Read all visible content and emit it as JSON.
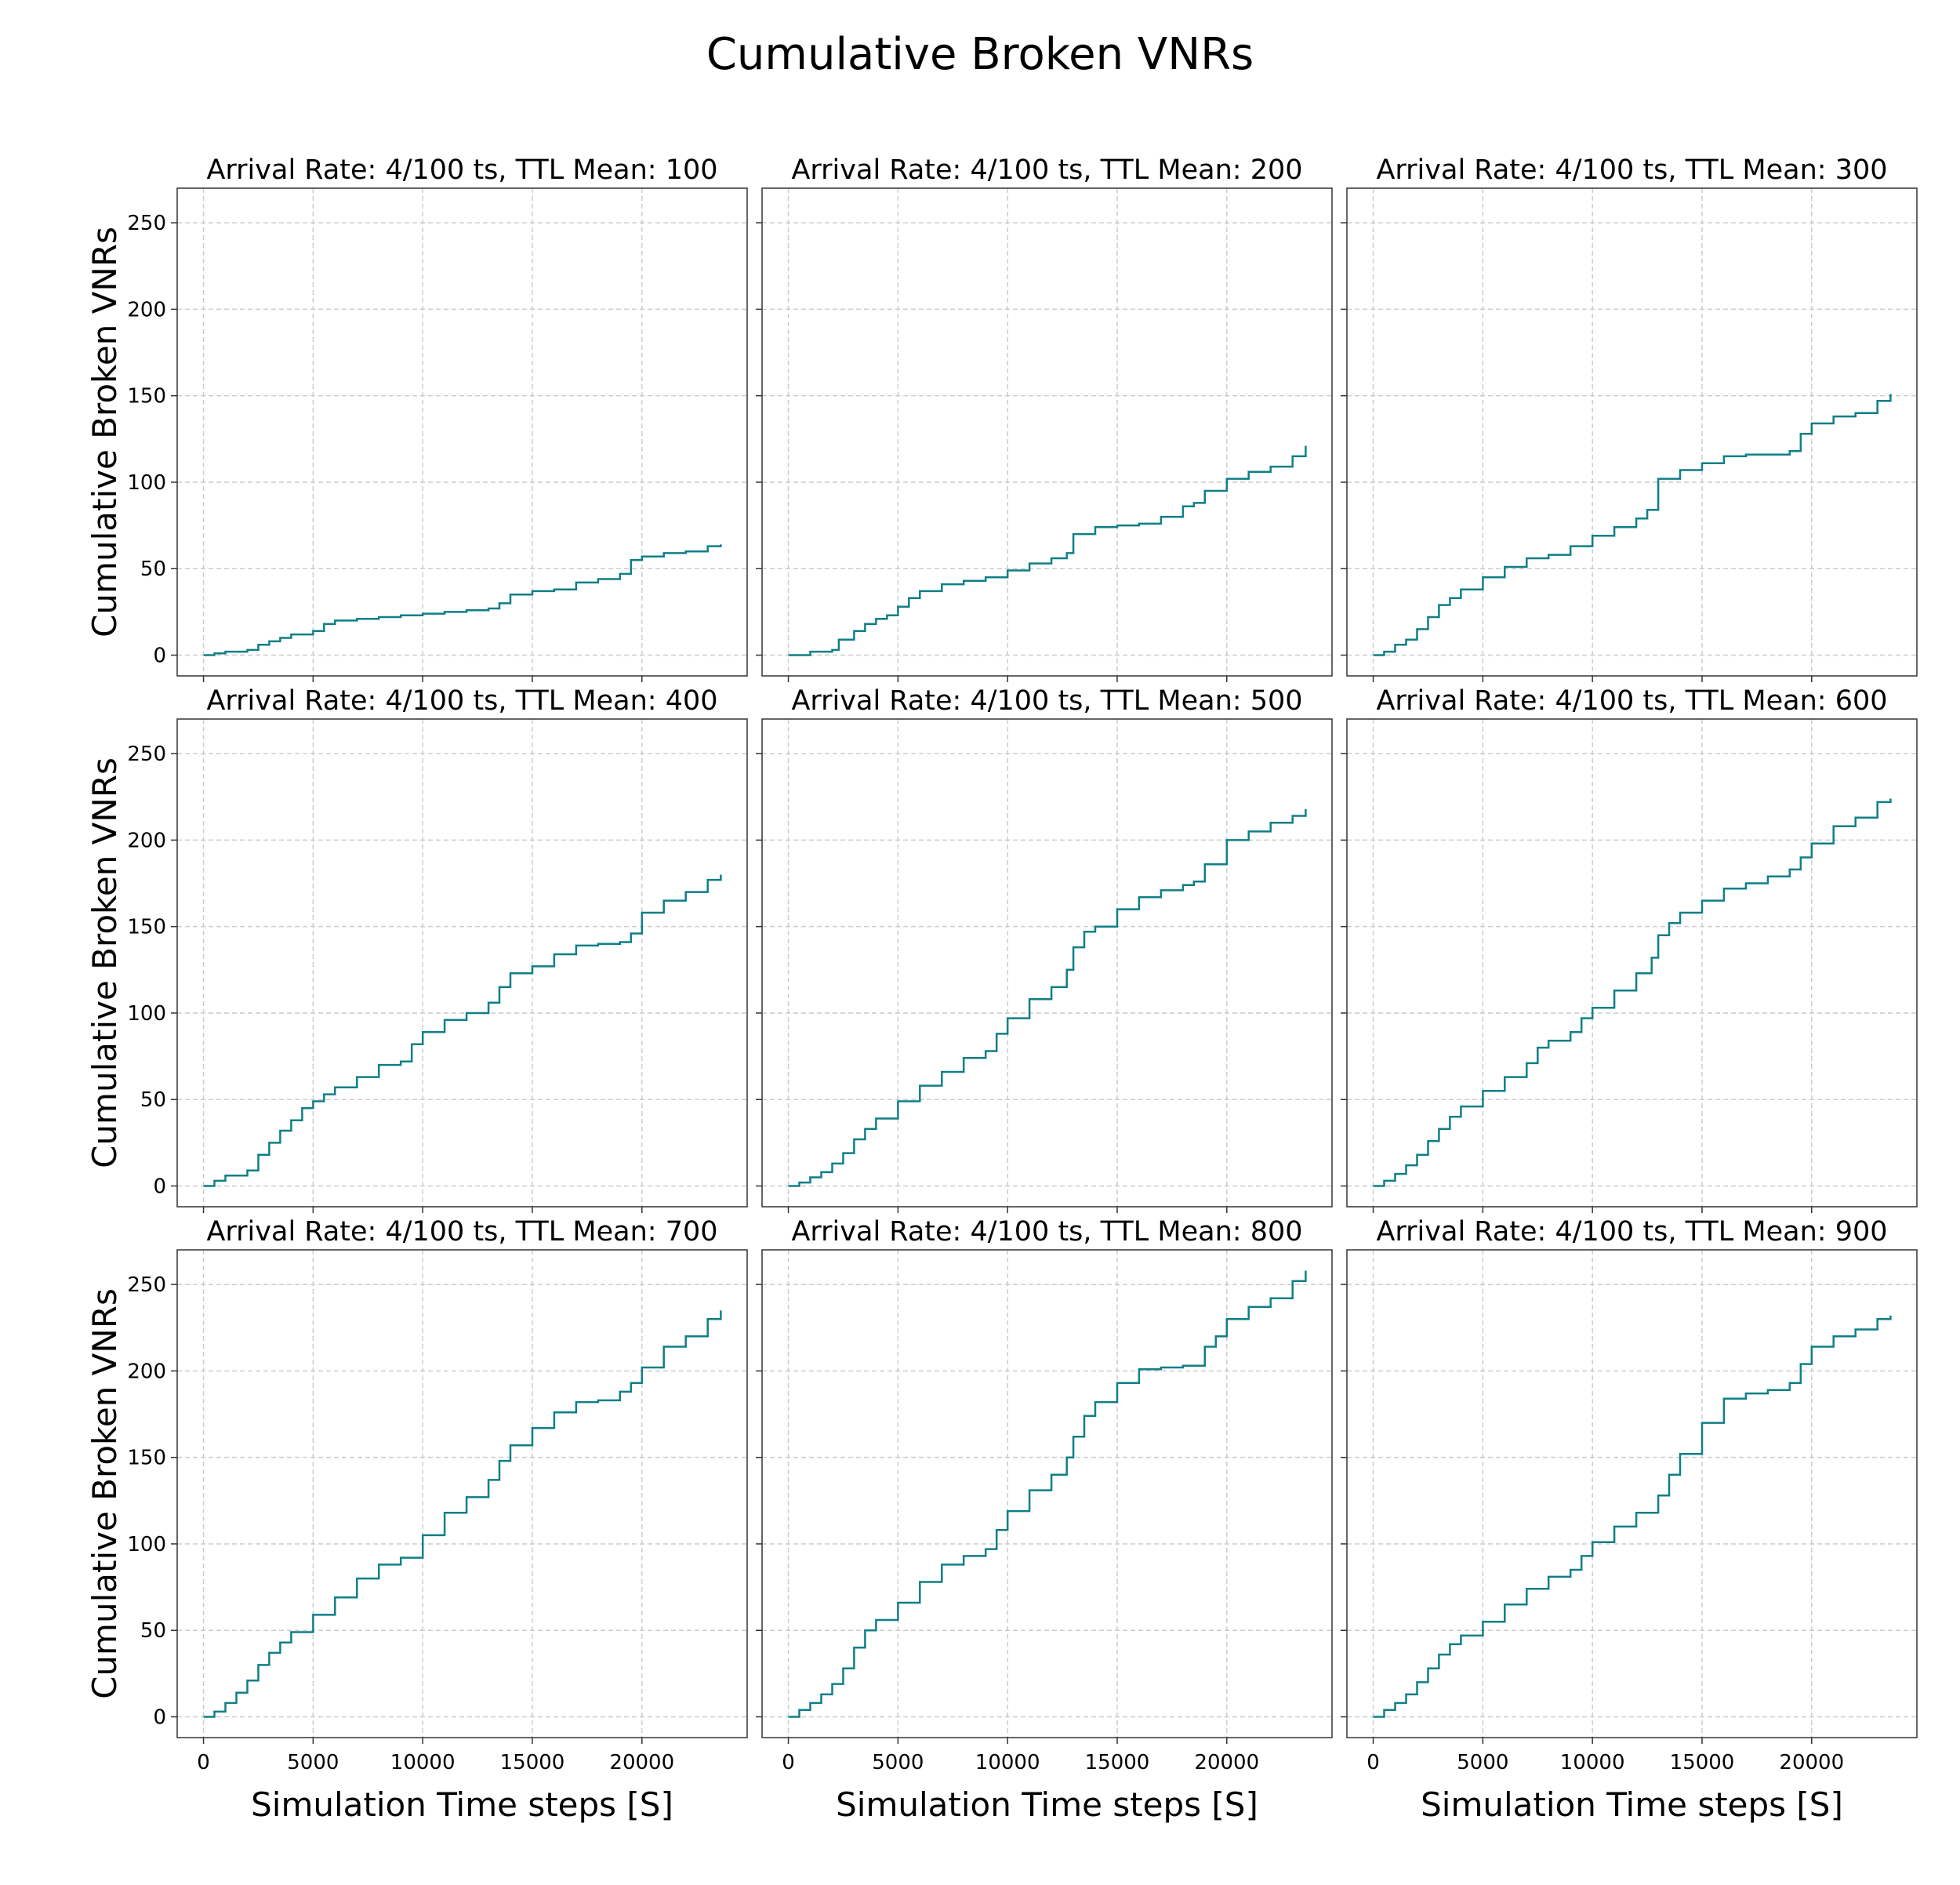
{
  "figure": {
    "title": "Cumulative Broken VNRs",
    "ylabel": "Cumulative Broken VNRs",
    "xlabel": "Simulation Time steps [S]",
    "line_color": "#0f7f86",
    "grid_color": "#cccccc"
  },
  "chart_data": [
    {
      "type": "line",
      "title": "Arrival Rate: 4/100 ts, TTL Mean: 100",
      "xlabel": "Simulation Time steps [S]",
      "ylabel": "Cumulative Broken VNRs",
      "xlim": [
        -1200,
        24800
      ],
      "ylim": [
        -12,
        270
      ],
      "xticks": [
        0,
        5000,
        10000,
        15000,
        20000
      ],
      "yticks": [
        0,
        50,
        100,
        150,
        200,
        250
      ],
      "grid": true,
      "step": true,
      "x": [
        0,
        500,
        1000,
        2000,
        2500,
        3000,
        3500,
        4000,
        5000,
        5500,
        6000,
        7000,
        8000,
        9000,
        10000,
        11000,
        12000,
        13000,
        13500,
        14000,
        15000,
        16000,
        17000,
        18000,
        19000,
        19500,
        20000,
        21000,
        22000,
        23000,
        23600
      ],
      "y": [
        0,
        1,
        2,
        3,
        6,
        8,
        10,
        12,
        14,
        18,
        20,
        21,
        22,
        23,
        24,
        25,
        26,
        27,
        30,
        35,
        37,
        38,
        42,
        44,
        47,
        55,
        57,
        59,
        60,
        63,
        64
      ]
    },
    {
      "type": "line",
      "title": "Arrival Rate: 4/100 ts, TTL Mean: 200",
      "xlabel": "Simulation Time steps [S]",
      "ylabel": "Cumulative Broken VNRs",
      "xlim": [
        -1200,
        24800
      ],
      "ylim": [
        -12,
        270
      ],
      "xticks": [
        0,
        5000,
        10000,
        15000,
        20000
      ],
      "yticks": [
        0,
        50,
        100,
        150,
        200,
        250
      ],
      "grid": true,
      "step": true,
      "x": [
        0,
        500,
        1000,
        2000,
        2300,
        3000,
        3500,
        4000,
        4500,
        5000,
        5500,
        6000,
        7000,
        8000,
        9000,
        10000,
        11000,
        12000,
        12700,
        13000,
        14000,
        15000,
        16000,
        17000,
        18000,
        18500,
        19000,
        20000,
        21000,
        22000,
        23000,
        23600
      ],
      "y": [
        0,
        0,
        2,
        3,
        9,
        14,
        18,
        21,
        23,
        28,
        33,
        37,
        41,
        43,
        45,
        49,
        53,
        56,
        59,
        70,
        74,
        75,
        76,
        80,
        86,
        88,
        95,
        102,
        106,
        109,
        115,
        121
      ]
    },
    {
      "type": "line",
      "title": "Arrival Rate: 4/100 ts, TTL Mean: 300",
      "xlabel": "Simulation Time steps [S]",
      "ylabel": "Cumulative Broken VNRs",
      "xlim": [
        -1200,
        24800
      ],
      "ylim": [
        -12,
        270
      ],
      "xticks": [
        0,
        5000,
        10000,
        15000,
        20000
      ],
      "yticks": [
        0,
        50,
        100,
        150,
        200,
        250
      ],
      "grid": true,
      "step": true,
      "x": [
        0,
        500,
        1000,
        1500,
        2000,
        2500,
        3000,
        3500,
        4000,
        5000,
        6000,
        7000,
        8000,
        9000,
        10000,
        11000,
        12000,
        12500,
        13000,
        14000,
        15000,
        16000,
        17000,
        18000,
        19000,
        19500,
        20000,
        21000,
        22000,
        23000,
        23600
      ],
      "y": [
        0,
        2,
        6,
        9,
        15,
        22,
        29,
        33,
        38,
        45,
        51,
        56,
        58,
        63,
        69,
        74,
        79,
        84,
        102,
        107,
        111,
        115,
        116,
        116,
        118,
        128,
        134,
        138,
        140,
        147,
        151
      ]
    },
    {
      "type": "line",
      "title": "Arrival Rate: 4/100 ts, TTL Mean: 400",
      "xlabel": "Simulation Time steps [S]",
      "ylabel": "Cumulative Broken VNRs",
      "xlim": [
        -1200,
        24800
      ],
      "ylim": [
        -12,
        270
      ],
      "xticks": [
        0,
        5000,
        10000,
        15000,
        20000
      ],
      "yticks": [
        0,
        50,
        100,
        150,
        200,
        250
      ],
      "grid": true,
      "step": true,
      "x": [
        0,
        500,
        1000,
        2000,
        2500,
        3000,
        3500,
        4000,
        4500,
        5000,
        5500,
        6000,
        7000,
        8000,
        9000,
        9500,
        10000,
        11000,
        12000,
        13000,
        13500,
        14000,
        15000,
        16000,
        17000,
        18000,
        19000,
        19500,
        20000,
        21000,
        22000,
        23000,
        23600
      ],
      "y": [
        0,
        3,
        6,
        9,
        18,
        25,
        32,
        38,
        45,
        49,
        53,
        57,
        63,
        70,
        72,
        82,
        89,
        96,
        100,
        106,
        115,
        123,
        127,
        134,
        139,
        140,
        141,
        146,
        158,
        165,
        170,
        177,
        180
      ]
    },
    {
      "type": "line",
      "title": "Arrival Rate: 4/100 ts, TTL Mean: 500",
      "xlabel": "Simulation Time steps [S]",
      "ylabel": "Cumulative Broken VNRs",
      "xlim": [
        -1200,
        24800
      ],
      "ylim": [
        -12,
        270
      ],
      "xticks": [
        0,
        5000,
        10000,
        15000,
        20000
      ],
      "yticks": [
        0,
        50,
        100,
        150,
        200,
        250
      ],
      "grid": true,
      "step": true,
      "x": [
        0,
        500,
        1000,
        1500,
        2000,
        2500,
        3000,
        3500,
        4000,
        5000,
        6000,
        7000,
        8000,
        9000,
        9500,
        10000,
        11000,
        12000,
        12700,
        13000,
        13500,
        14000,
        15000,
        16000,
        17000,
        18000,
        18500,
        19000,
        20000,
        21000,
        22000,
        23000,
        23600
      ],
      "y": [
        0,
        2,
        5,
        8,
        13,
        19,
        27,
        33,
        39,
        49,
        58,
        66,
        74,
        78,
        88,
        97,
        108,
        115,
        125,
        138,
        147,
        150,
        160,
        167,
        171,
        174,
        176,
        186,
        200,
        205,
        210,
        214,
        218
      ]
    },
    {
      "type": "line",
      "title": "Arrival Rate: 4/100 ts, TTL Mean: 600",
      "xlabel": "Simulation Time steps [S]",
      "ylabel": "Cumulative Broken VNRs",
      "xlim": [
        -1200,
        24800
      ],
      "ylim": [
        -12,
        270
      ],
      "xticks": [
        0,
        5000,
        10000,
        15000,
        20000
      ],
      "yticks": [
        0,
        50,
        100,
        150,
        200,
        250
      ],
      "grid": true,
      "step": true,
      "x": [
        0,
        500,
        1000,
        1500,
        2000,
        2500,
        3000,
        3500,
        4000,
        5000,
        6000,
        7000,
        7500,
        8000,
        9000,
        9500,
        10000,
        11000,
        12000,
        12700,
        13000,
        13500,
        14000,
        15000,
        16000,
        17000,
        18000,
        19000,
        19500,
        20000,
        21000,
        22000,
        23000,
        23600
      ],
      "y": [
        0,
        3,
        7,
        12,
        18,
        26,
        33,
        40,
        46,
        55,
        63,
        71,
        80,
        84,
        89,
        97,
        103,
        113,
        123,
        132,
        145,
        152,
        158,
        165,
        172,
        175,
        179,
        183,
        190,
        198,
        208,
        213,
        222,
        224
      ]
    },
    {
      "type": "line",
      "title": "Arrival Rate: 4/100 ts, TTL Mean: 700",
      "xlabel": "Simulation Time steps [S]",
      "ylabel": "Cumulative Broken VNRs",
      "xlim": [
        -1200,
        24800
      ],
      "ylim": [
        -12,
        270
      ],
      "xticks": [
        0,
        5000,
        10000,
        15000,
        20000
      ],
      "yticks": [
        0,
        50,
        100,
        150,
        200,
        250
      ],
      "grid": true,
      "step": true,
      "x": [
        0,
        500,
        1000,
        1500,
        2000,
        2500,
        3000,
        3500,
        4000,
        5000,
        6000,
        7000,
        8000,
        9000,
        10000,
        11000,
        12000,
        13000,
        13500,
        14000,
        15000,
        16000,
        17000,
        18000,
        19000,
        19500,
        20000,
        21000,
        22000,
        23000,
        23600
      ],
      "y": [
        0,
        3,
        8,
        14,
        21,
        30,
        37,
        43,
        49,
        59,
        69,
        80,
        88,
        92,
        105,
        118,
        127,
        137,
        148,
        157,
        167,
        176,
        182,
        183,
        188,
        193,
        202,
        214,
        220,
        230,
        235
      ]
    },
    {
      "type": "line",
      "title": "Arrival Rate: 4/100 ts, TTL Mean: 800",
      "xlabel": "Simulation Time steps [S]",
      "ylabel": "Cumulative Broken VNRs",
      "xlim": [
        -1200,
        24800
      ],
      "ylim": [
        -12,
        270
      ],
      "xticks": [
        0,
        5000,
        10000,
        15000,
        20000
      ],
      "yticks": [
        0,
        50,
        100,
        150,
        200,
        250
      ],
      "grid": true,
      "step": true,
      "x": [
        0,
        500,
        1000,
        1500,
        2000,
        2500,
        3000,
        3500,
        4000,
        5000,
        6000,
        7000,
        8000,
        9000,
        9500,
        10000,
        11000,
        12000,
        12700,
        13000,
        13500,
        14000,
        15000,
        16000,
        17000,
        18000,
        19000,
        19500,
        20000,
        21000,
        22000,
        23000,
        23600
      ],
      "y": [
        0,
        4,
        8,
        13,
        19,
        28,
        40,
        50,
        56,
        66,
        78,
        88,
        93,
        97,
        108,
        119,
        131,
        140,
        150,
        162,
        174,
        182,
        193,
        201,
        202,
        203,
        214,
        220,
        230,
        237,
        242,
        252,
        258
      ]
    },
    {
      "type": "line",
      "title": "Arrival Rate: 4/100 ts, TTL Mean: 900",
      "xlabel": "Simulation Time steps [S]",
      "ylabel": "Cumulative Broken VNRs",
      "xlim": [
        -1200,
        24800
      ],
      "ylim": [
        -12,
        270
      ],
      "xticks": [
        0,
        5000,
        10000,
        15000,
        20000
      ],
      "yticks": [
        0,
        50,
        100,
        150,
        200,
        250
      ],
      "grid": true,
      "step": true,
      "x": [
        0,
        500,
        1000,
        1500,
        2000,
        2500,
        3000,
        3500,
        4000,
        5000,
        6000,
        7000,
        8000,
        9000,
        9500,
        10000,
        11000,
        12000,
        13000,
        13500,
        14000,
        15000,
        16000,
        17000,
        18000,
        19000,
        19500,
        20000,
        21000,
        22000,
        23000,
        23600
      ],
      "y": [
        0,
        4,
        8,
        13,
        20,
        28,
        36,
        42,
        47,
        55,
        65,
        74,
        81,
        85,
        93,
        101,
        110,
        118,
        128,
        140,
        152,
        170,
        184,
        187,
        189,
        193,
        204,
        214,
        220,
        224,
        230,
        232
      ]
    }
  ]
}
